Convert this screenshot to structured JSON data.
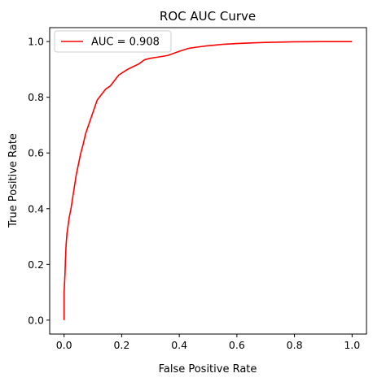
{
  "chart_data": {
    "type": "line",
    "title": "ROC AUC Curve",
    "xlabel": "False Positive Rate",
    "ylabel": "True Positive Rate",
    "xlim": [
      -0.05,
      1.05
    ],
    "ylim": [
      -0.05,
      1.05
    ],
    "xticks": [
      0.0,
      0.2,
      0.4,
      0.6,
      0.8,
      1.0
    ],
    "yticks": [
      0.0,
      0.2,
      0.4,
      0.6,
      0.8,
      1.0
    ],
    "xtick_labels": [
      "0.0",
      "0.2",
      "0.4",
      "0.6",
      "0.8",
      "1.0"
    ],
    "ytick_labels": [
      "0.0",
      "0.2",
      "0.4",
      "0.6",
      "0.8",
      "1.0"
    ],
    "grid": false,
    "legend_position": "top-left",
    "series": [
      {
        "name": "AUC = 0.908",
        "color": "#ff0000",
        "x": [
          0.0,
          0.0,
          0.003,
          0.005,
          0.007,
          0.01,
          0.014,
          0.018,
          0.024,
          0.03,
          0.036,
          0.042,
          0.05,
          0.058,
          0.066,
          0.075,
          0.085,
          0.095,
          0.105,
          0.115,
          0.13,
          0.145,
          0.16,
          0.175,
          0.19,
          0.205,
          0.22,
          0.24,
          0.26,
          0.28,
          0.3,
          0.33,
          0.36,
          0.4,
          0.43,
          0.46,
          0.5,
          0.55,
          0.6,
          0.65,
          0.7,
          0.75,
          0.8,
          0.9,
          1.0
        ],
        "y": [
          0.0,
          0.1,
          0.16,
          0.22,
          0.27,
          0.31,
          0.34,
          0.37,
          0.4,
          0.44,
          0.48,
          0.52,
          0.56,
          0.6,
          0.63,
          0.67,
          0.7,
          0.73,
          0.76,
          0.79,
          0.81,
          0.83,
          0.84,
          0.86,
          0.88,
          0.89,
          0.9,
          0.91,
          0.92,
          0.935,
          0.94,
          0.945,
          0.95,
          0.965,
          0.975,
          0.98,
          0.985,
          0.99,
          0.993,
          0.995,
          0.997,
          0.998,
          0.999,
          1.0,
          1.0
        ]
      }
    ]
  }
}
